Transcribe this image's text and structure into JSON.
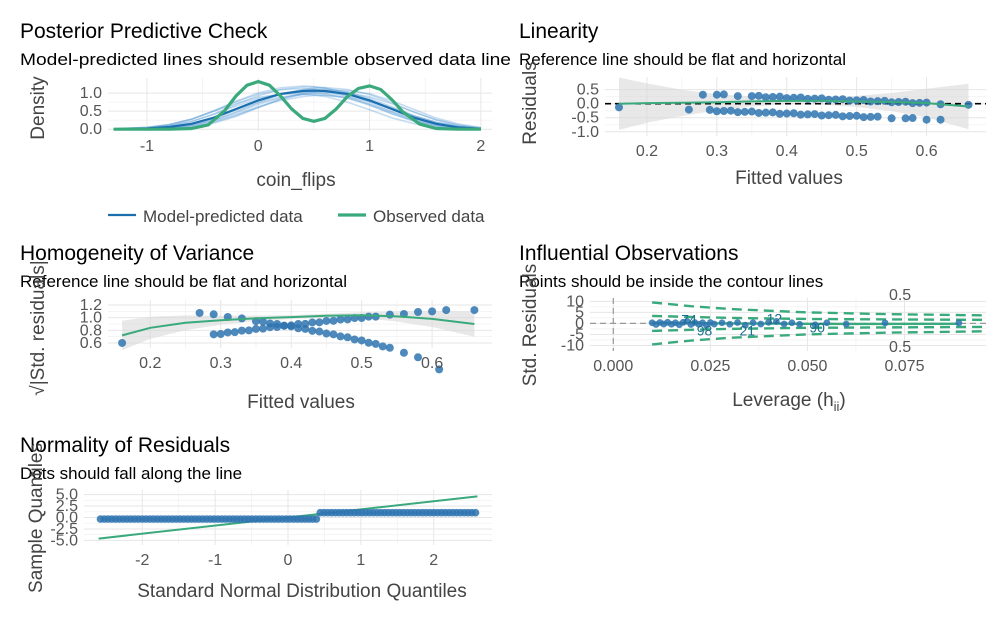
{
  "chart_data": [
    {
      "type": "line",
      "panel": "ppc",
      "title": "Posterior Predictive Check",
      "subtitle": "Model-predicted lines should resemble observed data line",
      "xlabel": "coin_flips",
      "ylabel": "Density",
      "xlim": [
        -1.35,
        2.1
      ],
      "ylim": [
        -0.05,
        1.42
      ],
      "xticks": [
        -1,
        0,
        1,
        2
      ],
      "xtick_labels": [
        "-1",
        "0",
        "1",
        "2"
      ],
      "yticks": [
        0.0,
        0.5,
        1.0
      ],
      "ytick_labels": [
        "0.0",
        "0.5",
        "1.0"
      ],
      "legend": {
        "position": "bottom",
        "entries": [
          {
            "label": "Model-predicted data",
            "color": "#1b6fae"
          },
          {
            "label": "Observed data",
            "color": "#3aaa7d"
          }
        ]
      },
      "observed": {
        "x": [
          -1.3,
          -1.0,
          -0.8,
          -0.6,
          -0.45,
          -0.3,
          -0.2,
          -0.1,
          0.0,
          0.1,
          0.2,
          0.3,
          0.4,
          0.5,
          0.6,
          0.7,
          0.8,
          0.9,
          1.0,
          1.1,
          1.2,
          1.3,
          1.45,
          1.6,
          1.8,
          2.0
        ],
        "y": [
          0.0,
          0.0,
          0.0,
          0.02,
          0.12,
          0.52,
          0.92,
          1.22,
          1.32,
          1.22,
          0.92,
          0.56,
          0.3,
          0.22,
          0.3,
          0.56,
          0.9,
          1.13,
          1.2,
          1.1,
          0.82,
          0.48,
          0.14,
          0.02,
          0.0,
          0.0
        ]
      },
      "predicted_mean": {
        "x": [
          -1.3,
          -1.0,
          -0.8,
          -0.6,
          -0.4,
          -0.2,
          0.0,
          0.2,
          0.4,
          0.5,
          0.6,
          0.8,
          1.0,
          1.2,
          1.4,
          1.6,
          1.8,
          2.0
        ],
        "y": [
          0.0,
          0.02,
          0.06,
          0.15,
          0.32,
          0.56,
          0.8,
          0.98,
          1.06,
          1.07,
          1.06,
          0.98,
          0.8,
          0.56,
          0.32,
          0.15,
          0.05,
          0.01
        ]
      }
    },
    {
      "type": "scatter",
      "panel": "linearity",
      "title": "Linearity",
      "subtitle": "Reference line should be flat and horizontal",
      "xlabel": "Fitted values",
      "ylabel": "Residuals",
      "xlim": [
        0.14,
        0.685
      ],
      "ylim": [
        -1.15,
        0.95
      ],
      "xticks": [
        0.2,
        0.3,
        0.4,
        0.5,
        0.6
      ],
      "xtick_labels": [
        "0.2",
        "0.3",
        "0.4",
        "0.5",
        "0.6"
      ],
      "yticks": [
        -1.0,
        -0.5,
        0.0,
        0.5
      ],
      "ytick_labels": [
        "-1.0",
        "-0.5",
        "0.0",
        "0.5"
      ],
      "reference_line": 0,
      "points_upper": [
        0.28,
        0.3,
        0.31,
        0.33,
        0.35,
        0.36,
        0.37,
        0.38,
        0.39,
        0.4,
        0.41,
        0.42,
        0.43,
        0.44,
        0.45,
        0.46,
        0.47,
        0.48,
        0.49,
        0.5,
        0.51,
        0.52,
        0.53,
        0.54,
        0.55,
        0.56,
        0.57,
        0.58,
        0.59,
        0.6,
        0.62,
        0.66
      ],
      "points_lower": [
        0.16,
        0.26,
        0.29,
        0.3,
        0.31,
        0.32,
        0.33,
        0.34,
        0.35,
        0.36,
        0.37,
        0.38,
        0.39,
        0.4,
        0.41,
        0.42,
        0.43,
        0.44,
        0.45,
        0.46,
        0.47,
        0.48,
        0.49,
        0.5,
        0.51,
        0.52,
        0.53,
        0.55,
        0.57,
        0.58,
        0.6,
        0.62
      ],
      "smooth": {
        "x": [
          0.16,
          0.2,
          0.25,
          0.3,
          0.35,
          0.4,
          0.45,
          0.5,
          0.55,
          0.6,
          0.66
        ],
        "y": [
          0.0,
          0.02,
          0.03,
          0.05,
          0.08,
          0.1,
          0.1,
          0.08,
          0.06,
          0.02,
          -0.1
        ]
      }
    },
    {
      "type": "scatter",
      "panel": "homogeneity",
      "title": "Homogeneity of Variance",
      "subtitle": "Reference line should be flat and horizontal",
      "xlabel": "Fitted values",
      "ylabel": "√|Std. residuals|",
      "xlim": [
        0.14,
        0.685
      ],
      "ylim": [
        0.52,
        1.28
      ],
      "xticks": [
        0.2,
        0.3,
        0.4,
        0.5,
        0.6
      ],
      "xtick_labels": [
        "0.2",
        "0.3",
        "0.4",
        "0.5",
        "0.6"
      ],
      "yticks": [
        0.6,
        0.8,
        1.0,
        1.2
      ],
      "ytick_labels": [
        "0.6",
        "0.8",
        "1.0",
        "1.2"
      ],
      "points_high": [
        0.27,
        0.29,
        0.31,
        0.33,
        0.35,
        0.36,
        0.37,
        0.38,
        0.39,
        0.4,
        0.41,
        0.42,
        0.43,
        0.44,
        0.45,
        0.46,
        0.47,
        0.48,
        0.49,
        0.5,
        0.51,
        0.52,
        0.53,
        0.54,
        0.56,
        0.58,
        0.61
      ],
      "points_low": [
        0.16,
        0.29,
        0.3,
        0.31,
        0.32,
        0.33,
        0.34,
        0.35,
        0.36,
        0.37,
        0.38,
        0.39,
        0.4,
        0.41,
        0.42,
        0.43,
        0.44,
        0.45,
        0.46,
        0.47,
        0.48,
        0.49,
        0.5,
        0.51,
        0.52,
        0.54,
        0.56,
        0.58,
        0.6,
        0.62,
        0.66
      ],
      "smooth": {
        "x": [
          0.16,
          0.2,
          0.25,
          0.3,
          0.35,
          0.4,
          0.45,
          0.5,
          0.55,
          0.6,
          0.66
        ],
        "y": [
          0.72,
          0.84,
          0.92,
          0.96,
          0.99,
          1.01,
          1.03,
          1.04,
          1.02,
          0.98,
          0.9
        ]
      }
    },
    {
      "type": "scatter",
      "panel": "influential",
      "title": "Influential Observations",
      "subtitle": "Points should be inside the contour lines",
      "xlabel": "Leverage (h",
      "xlabel_sub": "ii",
      "xlabel_end": ")",
      "ylabel": "Std. Residuals",
      "xlim": [
        -0.006,
        0.096
      ],
      "ylim": [
        -12.5,
        11.5
      ],
      "xticks": [
        0.0,
        0.025,
        0.05,
        0.075
      ],
      "xtick_labels": [
        "0.000",
        "0.025",
        "0.050",
        "0.075"
      ],
      "yticks": [
        -10,
        -5,
        0,
        5,
        10
      ],
      "ytick_labels": [
        "-10",
        "-5",
        "0",
        "5",
        "10"
      ],
      "contour_labels": [
        "0.5",
        "0.5"
      ],
      "point_labels": [
        {
          "label": "74",
          "x": 0.0195,
          "y": 1.8
        },
        {
          "label": "12",
          "x": 0.0415,
          "y": 2.2
        },
        {
          "label": "98",
          "x": 0.0235,
          "y": -3.2
        },
        {
          "label": "21",
          "x": 0.0345,
          "y": -3.2
        },
        {
          "label": "90",
          "x": 0.0525,
          "y": -1.8
        }
      ],
      "points": [
        [
          0.01,
          0.3
        ],
        [
          0.011,
          -0.5
        ],
        [
          0.012,
          0.4
        ],
        [
          0.013,
          -0.3
        ],
        [
          0.014,
          0.5
        ],
        [
          0.015,
          -0.4
        ],
        [
          0.016,
          0.3
        ],
        [
          0.017,
          -0.6
        ],
        [
          0.018,
          0.5
        ],
        [
          0.019,
          0.9
        ],
        [
          0.02,
          -0.5
        ],
        [
          0.021,
          0.4
        ],
        [
          0.022,
          -0.4
        ],
        [
          0.023,
          0.3
        ],
        [
          0.024,
          -0.9
        ],
        [
          0.025,
          0.4
        ],
        [
          0.026,
          -0.3
        ],
        [
          0.028,
          0.3
        ],
        [
          0.03,
          -0.4
        ],
        [
          0.032,
          0.4
        ],
        [
          0.034,
          -0.8
        ],
        [
          0.036,
          0.3
        ],
        [
          0.038,
          -0.3
        ],
        [
          0.04,
          0.5
        ],
        [
          0.042,
          0.9
        ],
        [
          0.044,
          -0.3
        ],
        [
          0.046,
          0.3
        ],
        [
          0.048,
          -0.4
        ],
        [
          0.052,
          -0.6
        ],
        [
          0.055,
          0.3
        ],
        [
          0.06,
          -0.3
        ],
        [
          0.07,
          0.2
        ],
        [
          0.089,
          0.2
        ]
      ],
      "smooth": {
        "x": [
          0.01,
          0.02,
          0.03,
          0.04,
          0.05,
          0.06,
          0.07,
          0.08,
          0.089
        ],
        "y": [
          0.2,
          0.1,
          0.0,
          -0.1,
          -0.2,
          -0.25,
          -0.25,
          -0.2,
          -0.2
        ]
      }
    },
    {
      "type": "scatter",
      "panel": "normality",
      "title": "Normality of Residuals",
      "subtitle": "Dots should fall along the line",
      "xlabel": "Standard Normal Distribution Quantiles",
      "ylabel": "Sample Quantiles",
      "xlim": [
        -2.8,
        2.8
      ],
      "ylim": [
        -6.0,
        6.0
      ],
      "xticks": [
        -2,
        -1,
        0,
        1,
        2
      ],
      "xtick_labels": [
        "-2",
        "-1",
        "0",
        "1",
        "2"
      ],
      "yticks": [
        -5.0,
        -2.5,
        0.0,
        2.5,
        5.0
      ],
      "ytick_labels": [
        "-5.0",
        "-2.5",
        "0.0",
        "2.5",
        "5.0"
      ],
      "qq_line": {
        "x": [
          -2.6,
          2.6
        ],
        "y": [
          -4.6,
          4.6
        ]
      },
      "lower_level": -0.35,
      "upper_level": 1.05
    }
  ]
}
